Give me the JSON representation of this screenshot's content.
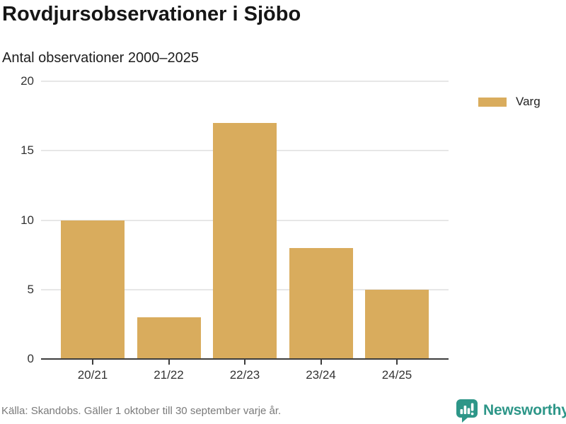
{
  "header": {
    "title": "Rovdjursobservationer i Sjöbo",
    "subtitle": "Antal observationer 2000–2025"
  },
  "chart_data": {
    "type": "bar",
    "categories": [
      "20/21",
      "21/22",
      "22/23",
      "23/24",
      "24/25"
    ],
    "series": [
      {
        "name": "Varg",
        "color": "#d9ac5d",
        "values": [
          10,
          3,
          17,
          8,
          5
        ]
      }
    ],
    "title": "Rovdjursobservationer i Sjöbo",
    "subtitle": "Antal observationer 2000–2025",
    "xlabel": "",
    "ylabel": "",
    "ylim": [
      0,
      20
    ],
    "yticks": [
      0,
      5,
      10,
      15,
      20
    ],
    "grid": true,
    "legend_position": "right"
  },
  "footer": {
    "source": "Källa: Skandobs. Gäller 1 oktober till 30 september varje år.",
    "brand": "Newsworthy"
  },
  "colors": {
    "bar": "#d9ac5d",
    "teal": "#2d9688",
    "grid": "#e7e7e7",
    "axis": "#3d3d3d",
    "text": "#1a1a1a",
    "muted": "#7a7a7a"
  }
}
